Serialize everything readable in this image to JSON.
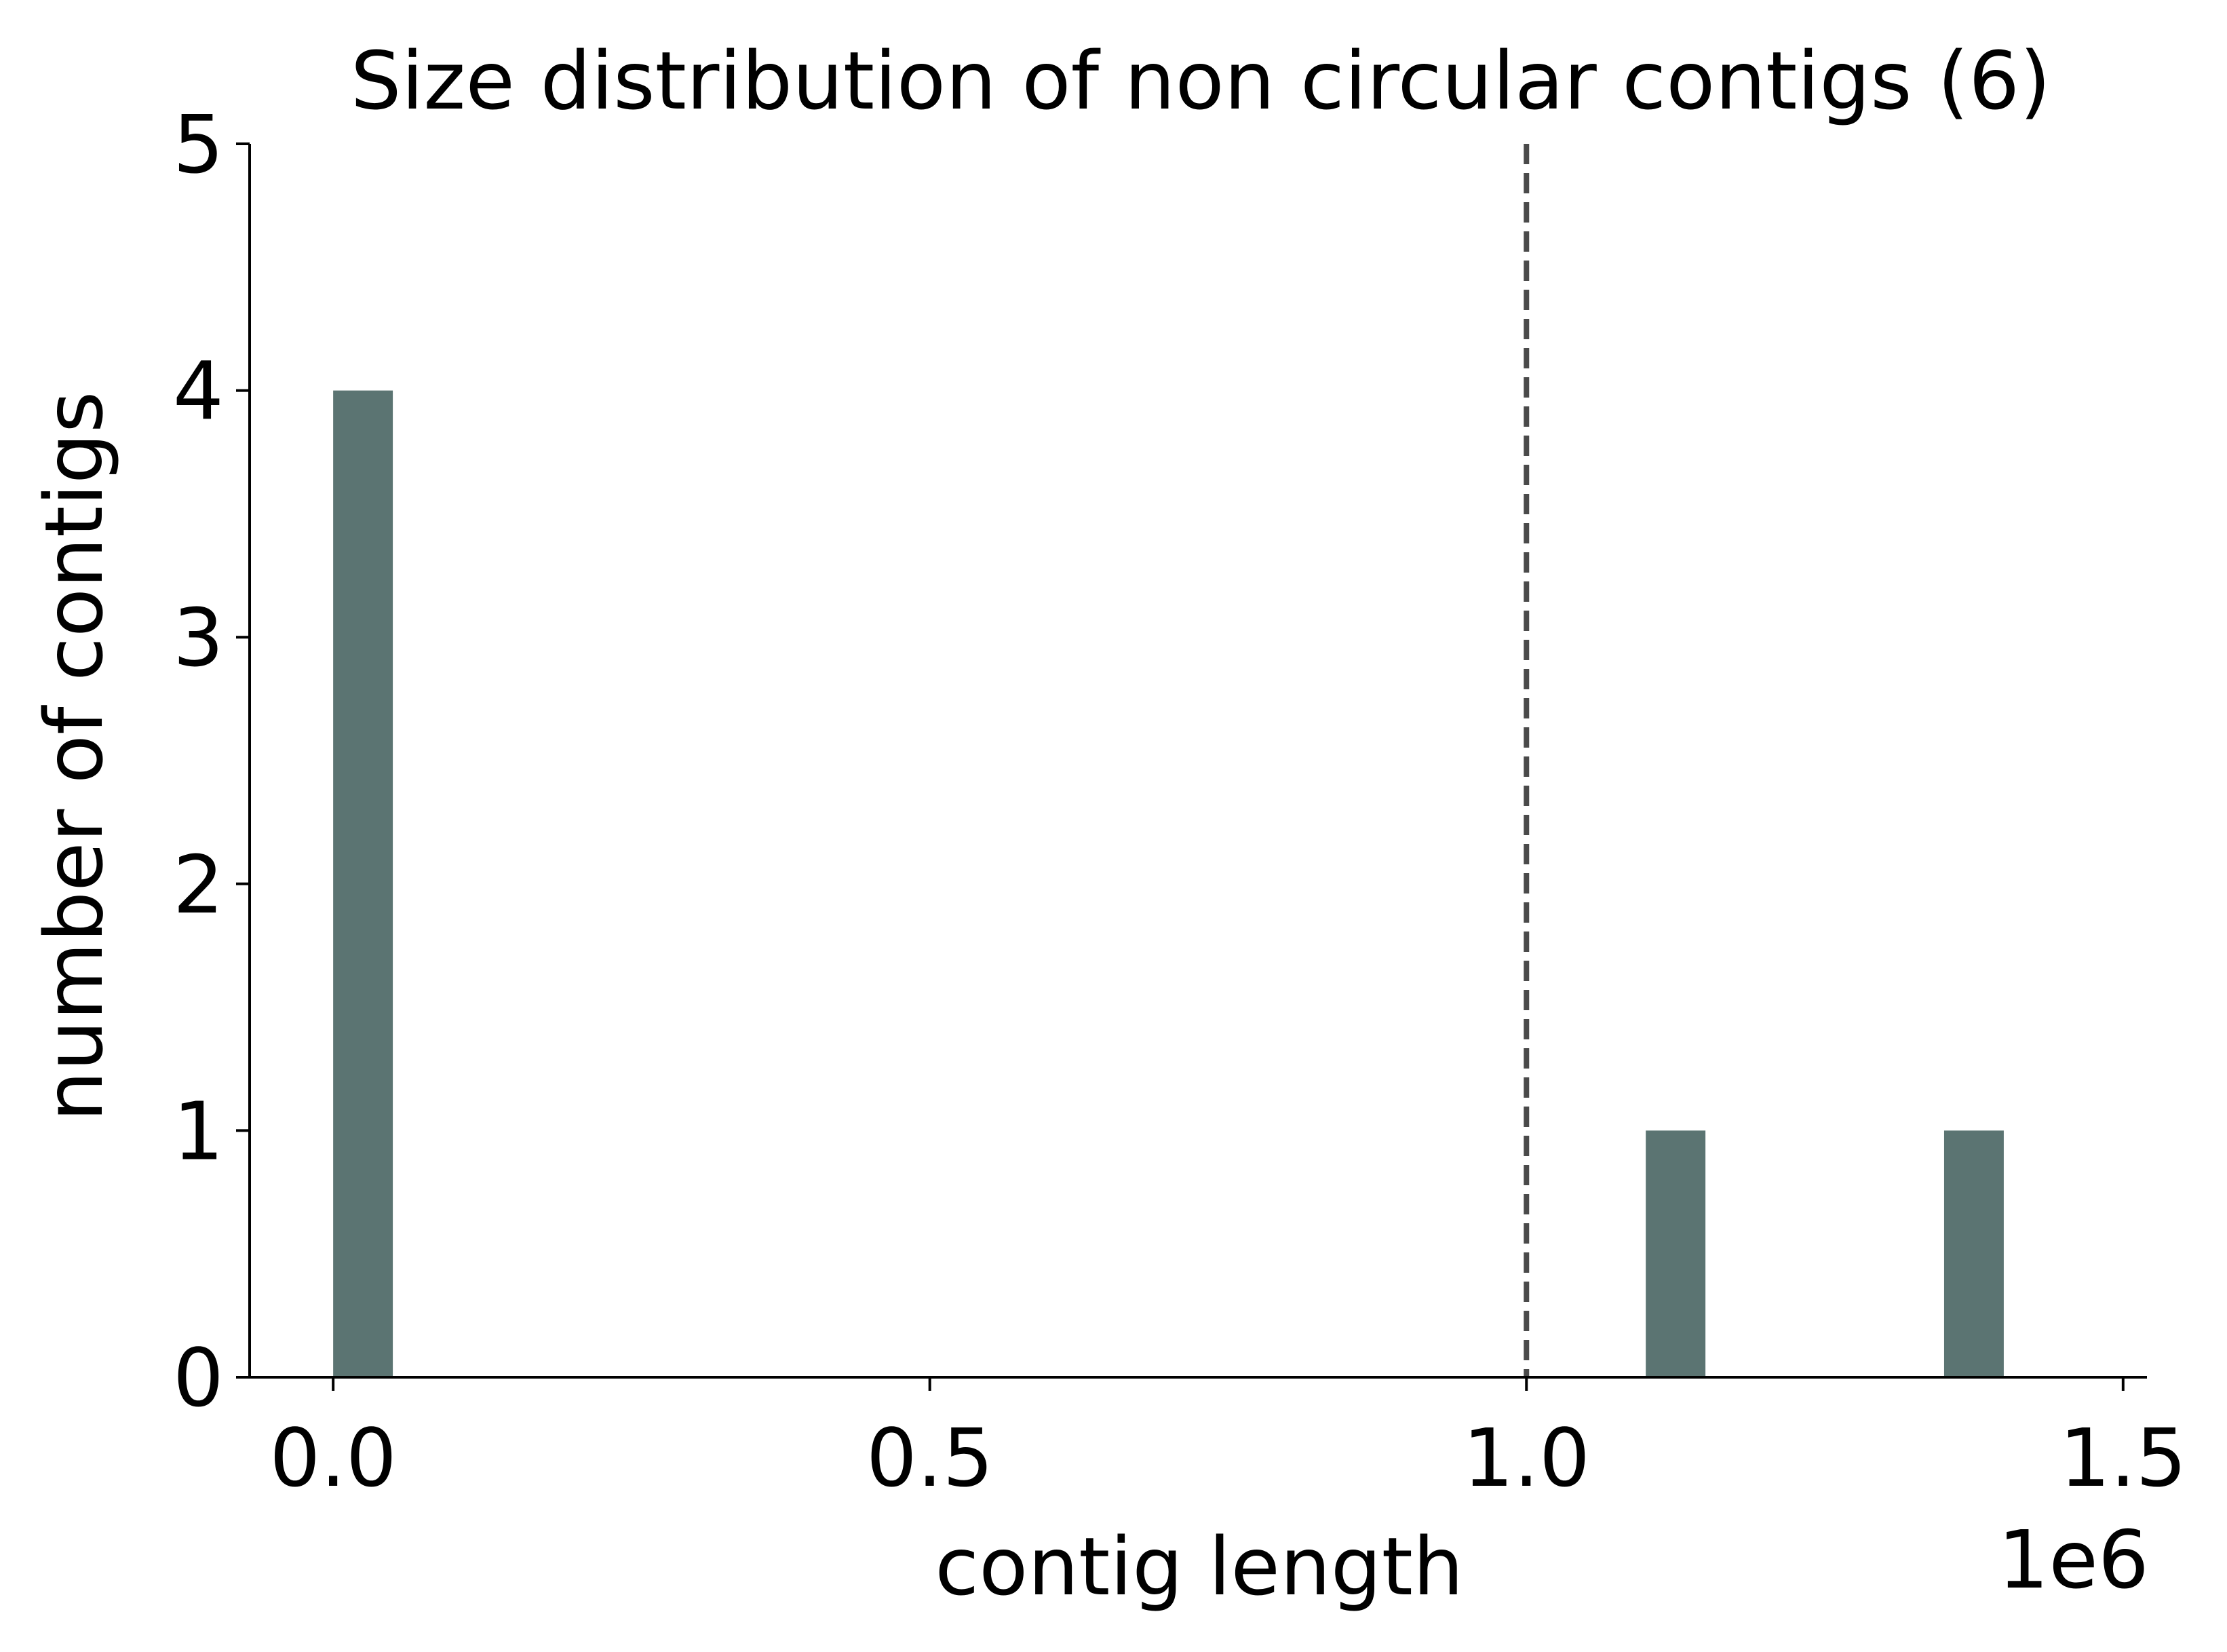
{
  "chart_data": {
    "type": "bar",
    "title": "Size distribution of non circular contigs (6)",
    "xlabel": "contig length",
    "ylabel": "number of contigs",
    "x_offset_label": "1e6",
    "x_scale": 1000000,
    "xlim": [
      -70000,
      1520000
    ],
    "ylim": [
      0,
      5
    ],
    "x_ticks": [
      0.0,
      0.5,
      1.0,
      1.5
    ],
    "x_tick_labels": [
      "0.0",
      "0.5",
      "1.0",
      "1.5"
    ],
    "y_ticks": [
      0,
      1,
      2,
      3,
      4,
      5
    ],
    "y_tick_labels": [
      "0",
      "1",
      "2",
      "3",
      "4",
      "5"
    ],
    "bin_width": 50000,
    "bars": [
      {
        "x_start": 0,
        "x_end": 50000,
        "count": 4
      },
      {
        "x_start": 1100000,
        "x_end": 1150000,
        "count": 1
      },
      {
        "x_start": 1350000,
        "x_end": 1400000,
        "count": 1
      }
    ],
    "threshold_line": {
      "x": 1000000,
      "style": "dashed"
    },
    "grid": false,
    "colors": {
      "bar": "#5b7472",
      "threshold": "#4a4a4a",
      "axis": "#000000"
    }
  }
}
